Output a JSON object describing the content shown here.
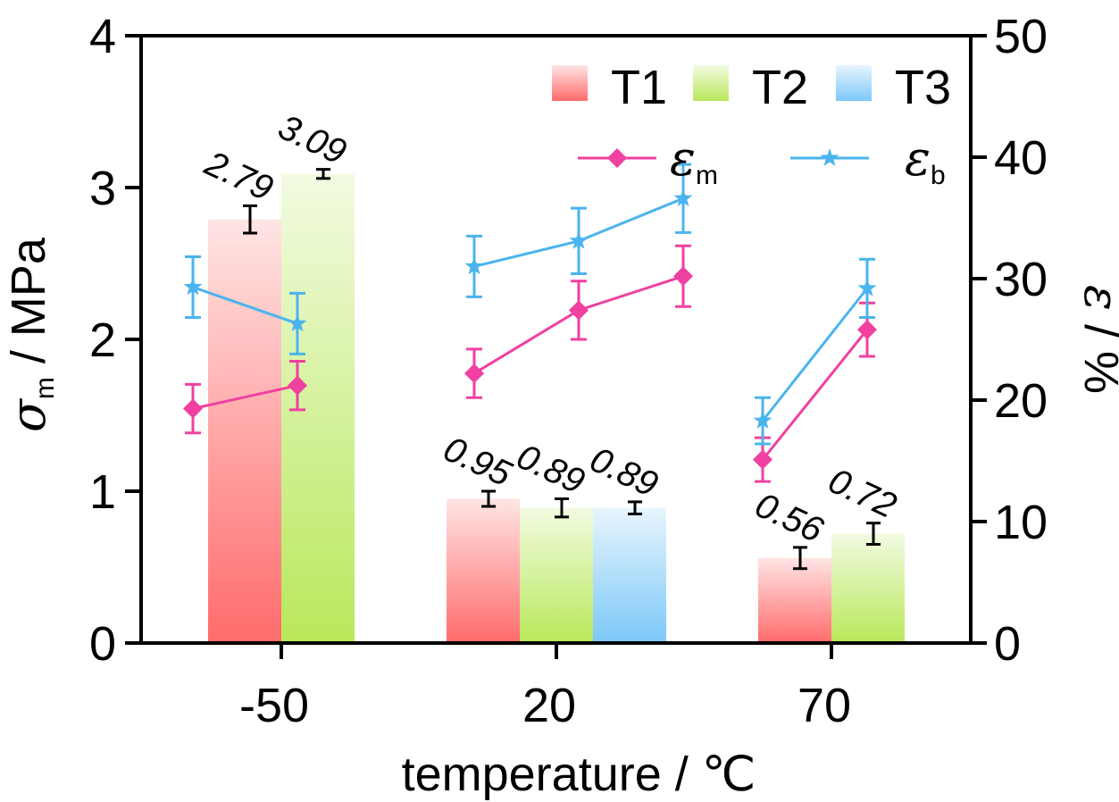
{
  "chart_data": {
    "type": "bar",
    "x_title": "temperature / ℃",
    "y_left_title": {
      "symbol": "σ",
      "sub": "m",
      "unit": " / MPa"
    },
    "y_right_title": {
      "symbol": "ε",
      "unit": " / %"
    },
    "categories": [
      "-50",
      "20",
      "70"
    ],
    "y_left": {
      "range": [
        0,
        4
      ],
      "ticks": [
        "0",
        "1",
        "2",
        "3",
        "4"
      ]
    },
    "y_right": {
      "range": [
        0,
        50
      ],
      "ticks": [
        "0",
        "10",
        "20",
        "30",
        "40",
        "50"
      ]
    },
    "bar_series": [
      {
        "name": "T1",
        "color": "#ff6b6b",
        "values": [
          2.79,
          0.95,
          0.56
        ],
        "errors": [
          0.09,
          0.05,
          0.07
        ],
        "labels": [
          "2.79",
          "0.95",
          "0.56"
        ]
      },
      {
        "name": "T2",
        "color": "#b8e85a",
        "values": [
          3.09,
          0.89,
          0.72
        ],
        "errors": [
          0.03,
          0.06,
          0.07
        ],
        "labels": [
          "3.09",
          "0.89",
          "0.72"
        ]
      },
      {
        "name": "T3",
        "color": "#7cc8f8",
        "values": [
          null,
          0.89,
          null
        ],
        "errors": [
          null,
          0.04,
          null
        ],
        "labels": [
          "",
          "0.89",
          ""
        ]
      }
    ],
    "line_series": [
      {
        "name": {
          "symbol": "ε",
          "sub": "m"
        },
        "color": "#f040a0",
        "marker": "diamond",
        "segments": [
          {
            "x": [
              0,
              1
            ],
            "y": [
              19.3,
              21.2
            ],
            "err": [
              2.0,
              2.0
            ]
          },
          {
            "x": [
              0,
              1,
              2
            ],
            "y": [
              22.2,
              27.4,
              30.2
            ],
            "err": [
              2.0,
              2.4,
              2.5
            ]
          },
          {
            "x": [
              0,
              1
            ],
            "y": [
              15.1,
              25.8
            ],
            "err": [
              1.8,
              2.2
            ]
          }
        ]
      },
      {
        "name": {
          "symbol": "ε",
          "sub": "b"
        },
        "color": "#4ab4ee",
        "marker": "star",
        "segments": [
          {
            "x": [
              0,
              1
            ],
            "y": [
              29.3,
              26.3
            ],
            "err": [
              2.5,
              2.5
            ]
          },
          {
            "x": [
              0,
              1,
              2
            ],
            "y": [
              31.0,
              33.1,
              36.6
            ],
            "err": [
              2.5,
              2.7,
              2.8
            ]
          },
          {
            "x": [
              0,
              1
            ],
            "y": [
              18.3,
              29.2
            ],
            "err": [
              1.9,
              2.4
            ]
          }
        ]
      }
    ],
    "legend_placement": "top-right",
    "grid": false
  }
}
